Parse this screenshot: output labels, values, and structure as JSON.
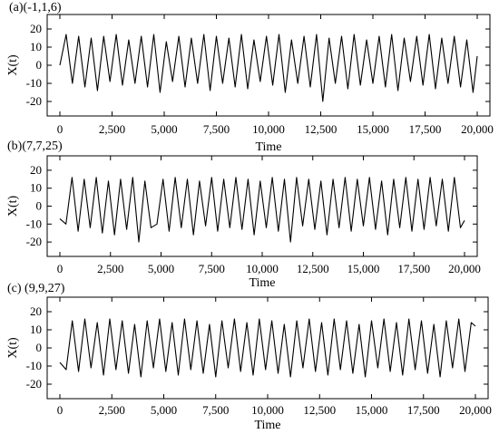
{
  "chart_data": [
    {
      "type": "line",
      "title": "(a)(-1,1,6)",
      "xlabel": "Time",
      "ylabel": "X(t)",
      "xlim": [
        0,
        20000
      ],
      "ylim": [
        -25,
        25
      ],
      "xticks": [
        0,
        2500,
        5000,
        7500,
        10000,
        12500,
        15000,
        17500,
        20000
      ],
      "xtick_labels": [
        "0",
        "2,500",
        "5,000",
        "7,500",
        "10,000",
        "12,500",
        "15,000",
        "17,500",
        "20,000"
      ],
      "yticks": [
        -20,
        -10,
        0,
        10,
        20
      ],
      "ytick_labels": [
        "-20",
        "-10",
        "0",
        "10",
        "20"
      ],
      "grid": false,
      "series": [
        {
          "color": "#000000",
          "x": [
            0,
            300,
            600,
            900,
            1200,
            1500,
            1800,
            2100,
            2400,
            2700,
            3000,
            3300,
            3600,
            3900,
            4200,
            4500,
            4800,
            5100,
            5400,
            5700,
            6000,
            6300,
            6600,
            6900,
            7200,
            7500,
            7800,
            8100,
            8400,
            8700,
            9000,
            9300,
            9600,
            9900,
            10200,
            10500,
            10800,
            11100,
            11400,
            11700,
            12000,
            12300,
            12600,
            12900,
            13200,
            13500,
            13800,
            14100,
            14400,
            14700,
            15000,
            15300,
            15600,
            15900,
            16200,
            16500,
            16800,
            17100,
            17400,
            17700,
            18000,
            18300,
            18600,
            18900,
            19200,
            19500,
            19800,
            20000
          ],
          "y": [
            0,
            17,
            -10,
            16,
            -12,
            15,
            -14,
            16,
            -9,
            17,
            -11,
            14,
            -10,
            16,
            -12,
            17,
            -15,
            13,
            -9,
            16,
            -12,
            15,
            -10,
            17,
            -14,
            16,
            -10,
            15,
            -12,
            17,
            -13,
            14,
            -9,
            16,
            -11,
            17,
            -15,
            14,
            -10,
            16,
            -12,
            17,
            -20,
            15,
            -10,
            16,
            -13,
            17,
            -11,
            14,
            -10,
            16,
            -12,
            17,
            -14,
            15,
            -9,
            16,
            -11,
            17,
            -13,
            15,
            -10,
            16,
            -12,
            14,
            -15,
            5
          ]
        }
      ]
    },
    {
      "type": "line",
      "title": "(b)(7,7,25)",
      "xlabel": "Time",
      "ylabel": "X(t)",
      "xlim": [
        0,
        20000
      ],
      "ylim": [
        -25,
        25
      ],
      "xticks": [
        0,
        2500,
        5000,
        7500,
        10000,
        12500,
        15000,
        17500,
        20000
      ],
      "xtick_labels": [
        "0",
        "2,500",
        "5,000",
        "7,500",
        "10,000",
        "12,500",
        "15,000",
        "17,500",
        "20,000"
      ],
      "yticks": [
        -20,
        -10,
        0,
        10,
        20
      ],
      "ytick_labels": [
        "-20",
        "-10",
        "0",
        "10",
        "20"
      ],
      "grid": false,
      "series": [
        {
          "color": "#000000",
          "x": [
            0,
            300,
            600,
            900,
            1200,
            1500,
            1800,
            2100,
            2400,
            2700,
            3000,
            3300,
            3600,
            3900,
            4200,
            4500,
            4800,
            5100,
            5400,
            5700,
            6000,
            6300,
            6600,
            6900,
            7200,
            7500,
            7800,
            8100,
            8400,
            8700,
            9000,
            9300,
            9600,
            9900,
            10200,
            10500,
            10800,
            11100,
            11400,
            11700,
            12000,
            12300,
            12600,
            12900,
            13200,
            13500,
            13800,
            14100,
            14400,
            14700,
            15000,
            15300,
            15600,
            15900,
            16200,
            16500,
            16800,
            17100,
            17400,
            17700,
            18000,
            18300,
            18600,
            18900,
            19200,
            19500,
            19800,
            20000
          ],
          "y": [
            -7,
            -10,
            16,
            -14,
            15,
            -12,
            16,
            -15,
            14,
            -16,
            15,
            -13,
            16,
            -20,
            14,
            -12,
            -10,
            15,
            -14,
            16,
            -12,
            15,
            -16,
            14,
            -11,
            16,
            -14,
            15,
            -12,
            16,
            -13,
            15,
            -16,
            14,
            -12,
            16,
            -14,
            15,
            -20,
            16,
            -11,
            15,
            -13,
            14,
            -16,
            15,
            -12,
            16,
            -14,
            15,
            -11,
            16,
            -13,
            14,
            -16,
            15,
            -12,
            16,
            -14,
            15,
            -13,
            16,
            -11,
            15,
            -14,
            16,
            -12,
            -8
          ]
        }
      ]
    },
    {
      "type": "line",
      "title": "(c) (9,9,27)",
      "xlabel": "Time",
      "ylabel": "X(t)",
      "xlim": [
        0,
        20000
      ],
      "ylim": [
        -25,
        25
      ],
      "xticks": [
        0,
        2500,
        5000,
        7500,
        10000,
        12500,
        15000,
        17500,
        20000
      ],
      "xtick_labels": [
        "0",
        "2,500",
        "5,000",
        "7,500",
        "10,000",
        "12,500",
        "15,000",
        "17,500",
        "20,000"
      ],
      "yticks": [
        -20,
        -10,
        0,
        10,
        20
      ],
      "ytick_labels": [
        "-20",
        "-10",
        "0",
        "10",
        "20"
      ],
      "grid": false,
      "series": [
        {
          "color": "#000000",
          "x": [
            0,
            300,
            600,
            900,
            1200,
            1500,
            1800,
            2100,
            2400,
            2700,
            3000,
            3300,
            3600,
            3900,
            4200,
            4500,
            4800,
            5100,
            5400,
            5700,
            6000,
            6300,
            6600,
            6900,
            7200,
            7500,
            7800,
            8100,
            8400,
            8700,
            9000,
            9300,
            9600,
            9900,
            10200,
            10500,
            10800,
            11100,
            11400,
            11700,
            12000,
            12300,
            12600,
            12900,
            13200,
            13500,
            13800,
            14100,
            14400,
            14700,
            15000,
            15300,
            15600,
            15900,
            16200,
            16500,
            16800,
            17100,
            17400,
            17700,
            18000,
            18300,
            18600,
            18900,
            19200,
            19500,
            19800,
            20000
          ],
          "y": [
            -8,
            -12,
            15,
            -13,
            16,
            -11,
            14,
            -15,
            16,
            -12,
            15,
            -14,
            13,
            -16,
            15,
            -11,
            16,
            -13,
            14,
            -15,
            16,
            -12,
            15,
            -14,
            13,
            -16,
            15,
            -11,
            16,
            -13,
            14,
            -15,
            16,
            -12,
            15,
            -14,
            13,
            -16,
            15,
            -11,
            16,
            -13,
            14,
            -15,
            16,
            -12,
            15,
            -14,
            13,
            -16,
            15,
            -11,
            16,
            -13,
            14,
            -15,
            16,
            -12,
            15,
            -14,
            13,
            -16,
            15,
            -11,
            16,
            -13,
            14,
            12
          ]
        }
      ]
    }
  ]
}
